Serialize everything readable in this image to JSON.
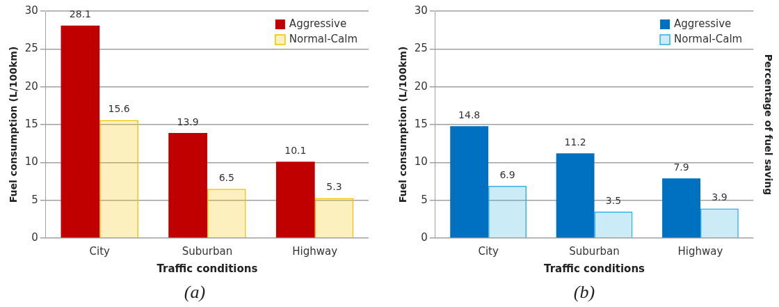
{
  "chart_data": [
    {
      "type": "bar",
      "ylabel": "Fuel consumption (L/100km)",
      "xlabel": "Traffic conditions",
      "categories": [
        "City",
        "Suburban",
        "Highway"
      ],
      "series": [
        {
          "name": "Aggressive",
          "color": "#c00000",
          "values": [
            28.1,
            13.9,
            10.1
          ]
        },
        {
          "name": "Normal-Calm",
          "color": "#f2c200",
          "values": [
            15.6,
            6.5,
            5.3
          ]
        }
      ],
      "ylim": [
        0,
        30
      ],
      "yticks": [
        0,
        5,
        10,
        15,
        20,
        25,
        30
      ],
      "grid": "y",
      "legend": "top right",
      "data_labels": true,
      "annotations": [
        "(a)"
      ]
    },
    {
      "type": "bar",
      "ylabel": "Fuel consumption (L/100km)",
      "y2label": "Percentage of fuel saving",
      "xlabel": "Traffic conditions",
      "categories": [
        "City",
        "Suburban",
        "Highway"
      ],
      "series": [
        {
          "name": "Aggressive",
          "color": "#0070c0",
          "values": [
            14.8,
            11.2,
            7.9
          ]
        },
        {
          "name": "Normal-Calm",
          "color": "#30b0e0",
          "values": [
            6.9,
            3.5,
            3.9
          ]
        }
      ],
      "ylim": [
        0,
        30
      ],
      "yticks": [
        0,
        5,
        10,
        15,
        20,
        25,
        30
      ],
      "grid": "y",
      "legend": "top right",
      "data_labels": true,
      "annotations": [
        "(b)"
      ]
    }
  ]
}
